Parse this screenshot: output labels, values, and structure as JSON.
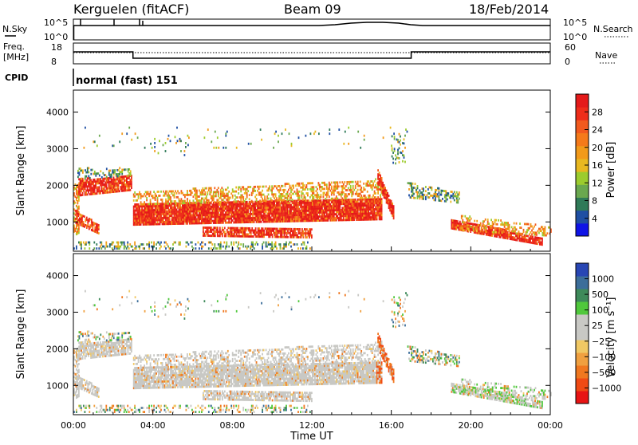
{
  "header": {
    "station": "Kerguelen (fitACF)",
    "beam": "Beam 09",
    "date": "18/Feb/2014"
  },
  "status_panels": {
    "nsky_label": "N.Sky",
    "nsky_ticks": [
      "10^5",
      "10^0"
    ],
    "nsearch_label": "N.Search",
    "nsearch_ticks": [
      "10^5",
      "10^0"
    ],
    "freq_label_1": "Freq.",
    "freq_label_2": "[MHz]",
    "freq_ticks": [
      "18",
      "8"
    ],
    "nave_label": "Nave",
    "nave_ticks": [
      "60",
      "0"
    ],
    "cpid_label": "CPID",
    "cpid_text": "normal (fast) 151",
    "freq_change_hours": [
      3.0,
      17.0
    ]
  },
  "chart_data": [
    {
      "type": "heatmap",
      "name": "power",
      "xlabel": "",
      "ylabel": "Slant Range [km]",
      "xlim": [
        0,
        24
      ],
      "ylim": [
        200,
        4600
      ],
      "yticks": [
        "1000",
        "2000",
        "3000",
        "4000"
      ],
      "colorbar_label": "Power [dB]",
      "colorbar_ticks": [
        "4",
        "8",
        "12",
        "16",
        "20",
        "24",
        "28"
      ],
      "colorbar_colors": [
        "#0f14e6",
        "#1f4fa3",
        "#2f7a58",
        "#6aa84f",
        "#9ccc2e",
        "#e8b820",
        "#f29a1a",
        "#f57a1a",
        "#f25a1e",
        "#ee2d1a",
        "#e41a1a"
      ]
    },
    {
      "type": "heatmap",
      "name": "velocity",
      "xlabel": "Time UT",
      "ylabel": "Slant Range [km]",
      "xlim": [
        0,
        24
      ],
      "ylim": [
        200,
        4600
      ],
      "yticks": [
        "1000",
        "2000",
        "3000",
        "4000"
      ],
      "xticks": [
        "00:00",
        "04:00",
        "08:00",
        "12:00",
        "16:00",
        "20:00",
        "00:00"
      ],
      "colorbar_label": "Velocity [m s⁻¹]",
      "colorbar_ticks": [
        "1000",
        "500",
        "100",
        "25",
        "−25",
        "−100",
        "−500",
        "−1000"
      ],
      "colorbar_colors": [
        "#2846b4",
        "#3c6e9a",
        "#3e8a5a",
        "#50c83c",
        "#c8c8c4",
        "#c8c8c4",
        "#f0c864",
        "#f0a040",
        "#f07820",
        "#f04a14",
        "#e81414"
      ]
    }
  ]
}
